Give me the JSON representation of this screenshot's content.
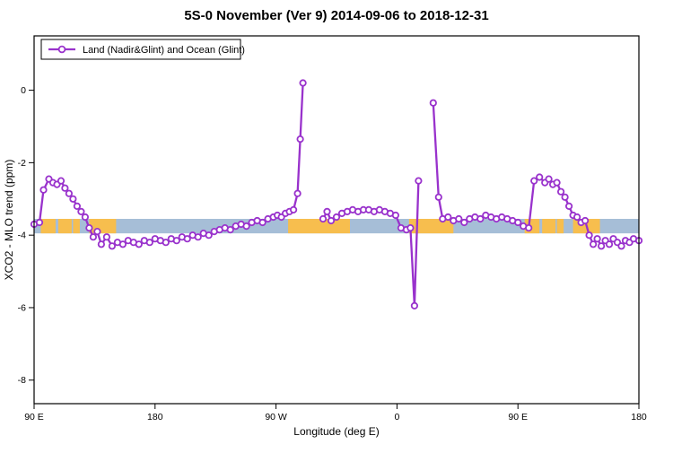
{
  "title": "5S-0 November (Ver 9)   2014-09-06 to 2018-12-31",
  "legend": {
    "label": "Land (Nadir&Glint) and Ocean (Glint)",
    "position": "top-left"
  },
  "chart_data": {
    "type": "line",
    "title": "5S-0 November (Ver 9)   2014-09-06 to 2018-12-31",
    "xlabel": "Longitude (deg E)",
    "ylabel": "XCO2 - MLO trend (ppm)",
    "xlim": [
      90,
      540
    ],
    "ylim": [
      -8.65,
      1.5
    ],
    "grid": false,
    "x_ticks": [
      {
        "pos": 90,
        "label": "90 E"
      },
      {
        "pos": 180,
        "label": "180"
      },
      {
        "pos": 270,
        "label": "90 W"
      },
      {
        "pos": 360,
        "label": "0"
      },
      {
        "pos": 450,
        "label": "90 E"
      },
      {
        "pos": 540,
        "label": "180"
      }
    ],
    "y_ticks": [
      0,
      -2,
      -4,
      -6,
      -8
    ],
    "colors": {
      "line": "#9932cc",
      "marker_fill": "#ffffff",
      "ocean_band": "#a6bed7",
      "land_band": "#f7be4e"
    },
    "band": {
      "y_top": -3.55,
      "y_bottom": -3.95,
      "land_segments": [
        [
          95,
          106
        ],
        [
          108,
          118
        ],
        [
          119,
          124
        ],
        [
          131,
          151
        ],
        [
          279,
          325
        ],
        [
          369,
          402
        ],
        [
          455,
          466
        ],
        [
          468,
          478
        ],
        [
          479,
          484
        ],
        [
          491,
          511
        ]
      ]
    },
    "series_name": "Land (Nadir&Glint) and Ocean (Glint)",
    "segments": [
      [
        [
          90,
          -3.7
        ],
        [
          94,
          -3.65
        ],
        [
          97,
          -2.75
        ],
        [
          101,
          -2.45
        ],
        [
          104,
          -2.55
        ],
        [
          107,
          -2.6
        ],
        [
          110,
          -2.5
        ],
        [
          113,
          -2.7
        ],
        [
          116,
          -2.85
        ],
        [
          119,
          -3.0
        ],
        [
          122,
          -3.2
        ],
        [
          125,
          -3.35
        ],
        [
          128,
          -3.5
        ],
        [
          131,
          -3.8
        ],
        [
          134,
          -4.05
        ],
        [
          137,
          -3.9
        ],
        [
          140,
          -4.25
        ],
        [
          144,
          -4.05
        ],
        [
          148,
          -4.3
        ],
        [
          152,
          -4.2
        ],
        [
          156,
          -4.25
        ],
        [
          160,
          -4.15
        ],
        [
          164,
          -4.2
        ],
        [
          168,
          -4.25
        ],
        [
          172,
          -4.15
        ],
        [
          176,
          -4.2
        ],
        [
          180,
          -4.1
        ],
        [
          184,
          -4.15
        ],
        [
          188,
          -4.2
        ],
        [
          192,
          -4.1
        ],
        [
          196,
          -4.15
        ],
        [
          200,
          -4.05
        ],
        [
          204,
          -4.1
        ],
        [
          208,
          -4.0
        ],
        [
          212,
          -4.05
        ],
        [
          216,
          -3.95
        ],
        [
          220,
          -4.0
        ],
        [
          224,
          -3.9
        ],
        [
          228,
          -3.85
        ],
        [
          232,
          -3.8
        ],
        [
          236,
          -3.85
        ],
        [
          240,
          -3.75
        ],
        [
          244,
          -3.7
        ],
        [
          248,
          -3.75
        ],
        [
          252,
          -3.65
        ],
        [
          256,
          -3.6
        ],
        [
          260,
          -3.65
        ],
        [
          264,
          -3.55
        ],
        [
          268,
          -3.5
        ],
        [
          271,
          -3.45
        ],
        [
          274,
          -3.5
        ],
        [
          277,
          -3.4
        ],
        [
          280,
          -3.35
        ],
        [
          283,
          -3.3
        ],
        [
          286,
          -2.85
        ],
        [
          288,
          -1.35
        ],
        [
          290,
          0.2
        ]
      ],
      [
        [
          305,
          -3.55
        ],
        [
          308,
          -3.35
        ],
        [
          311,
          -3.6
        ],
        [
          315,
          -3.5
        ],
        [
          319,
          -3.4
        ],
        [
          323,
          -3.35
        ],
        [
          327,
          -3.3
        ],
        [
          331,
          -3.35
        ],
        [
          335,
          -3.3
        ],
        [
          339,
          -3.3
        ],
        [
          343,
          -3.35
        ],
        [
          347,
          -3.3
        ],
        [
          351,
          -3.35
        ],
        [
          355,
          -3.4
        ],
        [
          359,
          -3.45
        ],
        [
          363,
          -3.8
        ],
        [
          367,
          -3.85
        ],
        [
          370,
          -3.8
        ],
        [
          373,
          -5.95
        ],
        [
          376,
          -2.5
        ]
      ],
      [
        [
          387,
          -0.35
        ],
        [
          391,
          -2.95
        ],
        [
          394,
          -3.55
        ],
        [
          398,
          -3.5
        ],
        [
          402,
          -3.6
        ],
        [
          406,
          -3.55
        ],
        [
          410,
          -3.65
        ],
        [
          414,
          -3.55
        ],
        [
          418,
          -3.5
        ],
        [
          422,
          -3.55
        ],
        [
          426,
          -3.45
        ],
        [
          430,
          -3.5
        ],
        [
          434,
          -3.55
        ],
        [
          438,
          -3.5
        ],
        [
          442,
          -3.55
        ],
        [
          446,
          -3.6
        ],
        [
          450,
          -3.65
        ],
        [
          454,
          -3.75
        ],
        [
          458,
          -3.8
        ],
        [
          462,
          -2.5
        ],
        [
          466,
          -2.4
        ],
        [
          470,
          -2.55
        ],
        [
          473,
          -2.45
        ],
        [
          476,
          -2.6
        ],
        [
          479,
          -2.55
        ],
        [
          482,
          -2.8
        ],
        [
          485,
          -2.95
        ],
        [
          488,
          -3.2
        ],
        [
          491,
          -3.45
        ],
        [
          494,
          -3.5
        ],
        [
          497,
          -3.65
        ],
        [
          500,
          -3.6
        ],
        [
          503,
          -4.0
        ],
        [
          506,
          -4.25
        ],
        [
          509,
          -4.1
        ],
        [
          512,
          -4.3
        ],
        [
          515,
          -4.15
        ],
        [
          518,
          -4.25
        ],
        [
          521,
          -4.1
        ],
        [
          524,
          -4.2
        ],
        [
          527,
          -4.3
        ],
        [
          530,
          -4.15
        ],
        [
          533,
          -4.2
        ],
        [
          536,
          -4.1
        ],
        [
          540,
          -4.15
        ]
      ]
    ]
  }
}
